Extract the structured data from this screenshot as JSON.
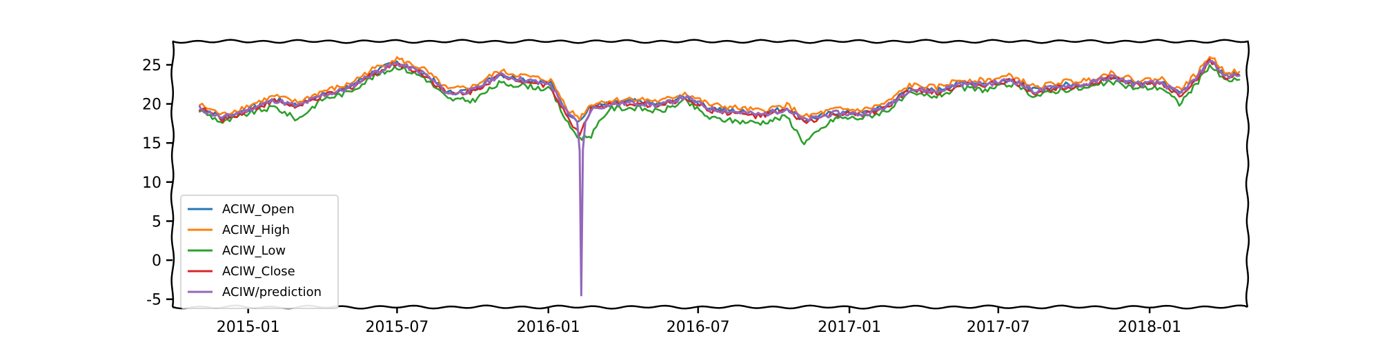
{
  "chart_data": {
    "type": "line",
    "title": "",
    "xlabel": "",
    "ylabel": "",
    "x_range": [
      "2014-10-01",
      "2018-04-30"
    ],
    "ylim": [
      -6,
      28
    ],
    "x_ticks": [
      "2015-01",
      "2015-07",
      "2016-01",
      "2016-07",
      "2017-01",
      "2017-07",
      "2018-01"
    ],
    "x_tick_dates": [
      "2015-01-01",
      "2015-07-01",
      "2016-01-01",
      "2016-07-01",
      "2017-01-01",
      "2017-07-01",
      "2018-01-01"
    ],
    "y_ticks": [
      25,
      20,
      15,
      10,
      5,
      0,
      -5
    ],
    "grid": false,
    "legend_position": "lower-left",
    "series": [
      {
        "name": "ACIW_Open",
        "color": "#1f77b4",
        "points": [
          [
            "2014-11-03",
            19.6
          ],
          [
            "2014-12-01",
            18.2
          ],
          [
            "2015-01-02",
            19.4
          ],
          [
            "2015-02-02",
            20.6
          ],
          [
            "2015-03-02",
            19.8
          ],
          [
            "2015-04-01",
            21.2
          ],
          [
            "2015-05-01",
            22.0
          ],
          [
            "2015-06-01",
            24.0
          ],
          [
            "2015-07-01",
            25.4
          ],
          [
            "2015-08-03",
            24.0
          ],
          [
            "2015-09-01",
            21.4
          ],
          [
            "2015-10-01",
            21.8
          ],
          [
            "2015-11-02",
            23.8
          ],
          [
            "2015-12-01",
            23.2
          ],
          [
            "2016-01-04",
            22.6
          ],
          [
            "2016-01-25",
            18.9
          ],
          [
            "2016-02-08",
            17.8
          ],
          [
            "2016-02-22",
            19.6
          ],
          [
            "2016-03-15",
            20.0
          ],
          [
            "2016-04-15",
            20.3
          ],
          [
            "2016-05-16",
            19.9
          ],
          [
            "2016-06-15",
            21.0
          ],
          [
            "2016-07-15",
            19.5
          ],
          [
            "2016-08-15",
            19.1
          ],
          [
            "2016-09-15",
            18.7
          ],
          [
            "2016-10-17",
            19.5
          ],
          [
            "2016-11-07",
            17.9
          ],
          [
            "2016-12-15",
            18.9
          ],
          [
            "2017-01-17",
            18.8
          ],
          [
            "2017-02-15",
            19.7
          ],
          [
            "2017-03-15",
            22.0
          ],
          [
            "2017-04-17",
            21.7
          ],
          [
            "2017-05-15",
            22.7
          ],
          [
            "2017-06-15",
            22.6
          ],
          [
            "2017-07-17",
            23.2
          ],
          [
            "2017-08-15",
            21.7
          ],
          [
            "2017-09-15",
            22.4
          ],
          [
            "2017-10-16",
            22.6
          ],
          [
            "2017-11-15",
            23.6
          ],
          [
            "2017-12-15",
            22.6
          ],
          [
            "2018-01-16",
            22.8
          ],
          [
            "2018-02-06",
            21.4
          ],
          [
            "2018-03-01",
            23.6
          ],
          [
            "2018-03-15",
            25.8
          ],
          [
            "2018-04-02",
            23.8
          ],
          [
            "2018-04-20",
            23.7
          ]
        ]
      },
      {
        "name": "ACIW_High",
        "color": "#ff7f0e",
        "points": [
          [
            "2014-11-03",
            19.9
          ],
          [
            "2014-12-01",
            18.6
          ],
          [
            "2015-01-02",
            19.8
          ],
          [
            "2015-02-02",
            21.0
          ],
          [
            "2015-03-02",
            20.2
          ],
          [
            "2015-04-01",
            21.6
          ],
          [
            "2015-05-01",
            22.4
          ],
          [
            "2015-06-01",
            24.4
          ],
          [
            "2015-07-01",
            25.8
          ],
          [
            "2015-08-03",
            24.4
          ],
          [
            "2015-09-01",
            21.8
          ],
          [
            "2015-10-01",
            22.2
          ],
          [
            "2015-11-02",
            24.2
          ],
          [
            "2015-12-01",
            23.6
          ],
          [
            "2016-01-04",
            23.0
          ],
          [
            "2016-01-25",
            19.3
          ],
          [
            "2016-02-08",
            18.2
          ],
          [
            "2016-02-22",
            20.0
          ],
          [
            "2016-03-15",
            20.4
          ],
          [
            "2016-04-15",
            20.7
          ],
          [
            "2016-05-16",
            20.3
          ],
          [
            "2016-06-15",
            21.4
          ],
          [
            "2016-07-15",
            19.9
          ],
          [
            "2016-08-15",
            19.5
          ],
          [
            "2016-09-15",
            19.1
          ],
          [
            "2016-10-17",
            19.9
          ],
          [
            "2016-11-07",
            18.3
          ],
          [
            "2016-12-15",
            19.3
          ],
          [
            "2017-01-17",
            19.2
          ],
          [
            "2017-02-15",
            20.1
          ],
          [
            "2017-03-15",
            22.4
          ],
          [
            "2017-04-17",
            22.1
          ],
          [
            "2017-05-15",
            23.1
          ],
          [
            "2017-06-15",
            23.0
          ],
          [
            "2017-07-17",
            23.6
          ],
          [
            "2017-08-15",
            22.1
          ],
          [
            "2017-09-15",
            22.8
          ],
          [
            "2017-10-16",
            23.0
          ],
          [
            "2017-11-15",
            24.0
          ],
          [
            "2017-12-15",
            23.0
          ],
          [
            "2018-01-16",
            23.2
          ],
          [
            "2018-02-06",
            21.8
          ],
          [
            "2018-03-01",
            24.0
          ],
          [
            "2018-03-15",
            26.2
          ],
          [
            "2018-04-02",
            24.2
          ],
          [
            "2018-04-20",
            24.1
          ]
        ]
      },
      {
        "name": "ACIW_Low",
        "color": "#2ca02c",
        "points": [
          [
            "2014-11-03",
            19.2
          ],
          [
            "2014-12-01",
            17.6
          ],
          [
            "2015-01-02",
            18.8
          ],
          [
            "2015-02-02",
            19.6
          ],
          [
            "2015-03-02",
            18.0
          ],
          [
            "2015-04-01",
            20.6
          ],
          [
            "2015-05-01",
            21.4
          ],
          [
            "2015-06-01",
            23.4
          ],
          [
            "2015-07-01",
            24.8
          ],
          [
            "2015-08-03",
            23.4
          ],
          [
            "2015-09-01",
            20.6
          ],
          [
            "2015-10-01",
            20.4
          ],
          [
            "2015-11-02",
            22.6
          ],
          [
            "2015-12-01",
            22.4
          ],
          [
            "2016-01-04",
            21.8
          ],
          [
            "2016-01-25",
            17.4
          ],
          [
            "2016-02-08",
            15.6
          ],
          [
            "2016-02-22",
            16.0
          ],
          [
            "2016-03-15",
            19.4
          ],
          [
            "2016-04-15",
            19.5
          ],
          [
            "2016-05-16",
            19.0
          ],
          [
            "2016-06-15",
            20.4
          ],
          [
            "2016-07-15",
            18.2
          ],
          [
            "2016-08-15",
            17.8
          ],
          [
            "2016-09-15",
            17.6
          ],
          [
            "2016-10-17",
            18.4
          ],
          [
            "2016-11-07",
            15.0
          ],
          [
            "2016-12-15",
            18.2
          ],
          [
            "2017-01-17",
            18.2
          ],
          [
            "2017-02-15",
            19.1
          ],
          [
            "2017-03-15",
            21.2
          ],
          [
            "2017-04-17",
            21.0
          ],
          [
            "2017-05-15",
            22.0
          ],
          [
            "2017-06-15",
            21.8
          ],
          [
            "2017-07-17",
            22.5
          ],
          [
            "2017-08-15",
            21.0
          ],
          [
            "2017-09-15",
            21.8
          ],
          [
            "2017-10-16",
            22.0
          ],
          [
            "2017-11-15",
            22.8
          ],
          [
            "2017-12-15",
            22.0
          ],
          [
            "2018-01-16",
            22.1
          ],
          [
            "2018-02-06",
            20.0
          ],
          [
            "2018-03-01",
            22.8
          ],
          [
            "2018-03-15",
            25.0
          ],
          [
            "2018-04-02",
            23.0
          ],
          [
            "2018-04-20",
            23.1
          ]
        ]
      },
      {
        "name": "ACIW_Close",
        "color": "#d62728",
        "points": [
          [
            "2014-11-03",
            19.5
          ],
          [
            "2014-12-01",
            18.0
          ],
          [
            "2015-01-02",
            19.2
          ],
          [
            "2015-02-02",
            20.4
          ],
          [
            "2015-03-02",
            19.6
          ],
          [
            "2015-04-01",
            21.0
          ],
          [
            "2015-05-01",
            21.8
          ],
          [
            "2015-06-01",
            23.8
          ],
          [
            "2015-07-01",
            25.2
          ],
          [
            "2015-08-03",
            23.8
          ],
          [
            "2015-09-01",
            21.2
          ],
          [
            "2015-10-01",
            21.6
          ],
          [
            "2015-11-02",
            23.6
          ],
          [
            "2015-12-01",
            23.0
          ],
          [
            "2016-01-04",
            22.3
          ],
          [
            "2016-01-25",
            18.0
          ],
          [
            "2016-02-08",
            16.2
          ],
          [
            "2016-02-22",
            19.4
          ],
          [
            "2016-03-15",
            19.8
          ],
          [
            "2016-04-15",
            20.1
          ],
          [
            "2016-05-16",
            19.7
          ],
          [
            "2016-06-15",
            20.8
          ],
          [
            "2016-07-15",
            19.2
          ],
          [
            "2016-08-15",
            18.8
          ],
          [
            "2016-09-15",
            18.4
          ],
          [
            "2016-10-17",
            19.2
          ],
          [
            "2016-11-07",
            17.6
          ],
          [
            "2016-12-15",
            18.7
          ],
          [
            "2017-01-17",
            18.6
          ],
          [
            "2017-02-15",
            19.5
          ],
          [
            "2017-03-15",
            21.8
          ],
          [
            "2017-04-17",
            21.4
          ],
          [
            "2017-05-15",
            22.4
          ],
          [
            "2017-06-15",
            22.4
          ],
          [
            "2017-07-17",
            23.0
          ],
          [
            "2017-08-15",
            21.4
          ],
          [
            "2017-09-15",
            22.2
          ],
          [
            "2017-10-16",
            22.4
          ],
          [
            "2017-11-15",
            23.4
          ],
          [
            "2017-12-15",
            22.4
          ],
          [
            "2018-01-16",
            22.6
          ],
          [
            "2018-02-06",
            21.0
          ],
          [
            "2018-03-01",
            23.4
          ],
          [
            "2018-03-15",
            25.6
          ],
          [
            "2018-04-02",
            23.4
          ],
          [
            "2018-04-20",
            23.6
          ]
        ]
      },
      {
        "name": "ACIW/prediction",
        "color": "#9467bd",
        "points": [
          [
            "2014-11-03",
            19.4
          ],
          [
            "2014-12-01",
            18.2
          ],
          [
            "2015-01-02",
            19.3
          ],
          [
            "2015-02-02",
            20.5
          ],
          [
            "2015-03-02",
            19.7
          ],
          [
            "2015-04-01",
            21.1
          ],
          [
            "2015-05-01",
            21.9
          ],
          [
            "2015-06-01",
            23.9
          ],
          [
            "2015-07-01",
            25.2
          ],
          [
            "2015-08-03",
            23.9
          ],
          [
            "2015-09-01",
            21.3
          ],
          [
            "2015-10-01",
            21.7
          ],
          [
            "2015-11-02",
            23.7
          ],
          [
            "2015-12-01",
            23.1
          ],
          [
            "2016-01-04",
            22.5
          ],
          [
            "2016-01-25",
            18.6
          ],
          [
            "2016-02-05",
            17.9
          ],
          [
            "2016-02-08",
            14.0
          ],
          [
            "2016-02-10",
            -4.5
          ],
          [
            "2016-02-12",
            14.0
          ],
          [
            "2016-02-15",
            17.6
          ],
          [
            "2016-02-22",
            19.4
          ],
          [
            "2016-03-15",
            19.9
          ],
          [
            "2016-04-15",
            20.2
          ],
          [
            "2016-05-16",
            19.8
          ],
          [
            "2016-06-15",
            20.9
          ],
          [
            "2016-07-15",
            19.4
          ],
          [
            "2016-08-15",
            19.0
          ],
          [
            "2016-09-15",
            18.6
          ],
          [
            "2016-10-17",
            19.4
          ],
          [
            "2016-11-07",
            17.9
          ],
          [
            "2016-12-15",
            18.8
          ],
          [
            "2017-01-17",
            18.7
          ],
          [
            "2017-02-15",
            19.6
          ],
          [
            "2017-03-15",
            21.9
          ],
          [
            "2017-04-17",
            21.6
          ],
          [
            "2017-05-15",
            22.6
          ],
          [
            "2017-06-15",
            22.5
          ],
          [
            "2017-07-17",
            23.1
          ],
          [
            "2017-08-15",
            21.6
          ],
          [
            "2017-09-15",
            22.3
          ],
          [
            "2017-10-16",
            22.5
          ],
          [
            "2017-11-15",
            23.5
          ],
          [
            "2017-12-15",
            22.5
          ],
          [
            "2018-01-16",
            22.7
          ],
          [
            "2018-02-06",
            21.2
          ],
          [
            "2018-03-01",
            23.5
          ],
          [
            "2018-03-15",
            25.7
          ],
          [
            "2018-04-02",
            23.6
          ],
          [
            "2018-04-20",
            23.6
          ]
        ]
      }
    ]
  }
}
